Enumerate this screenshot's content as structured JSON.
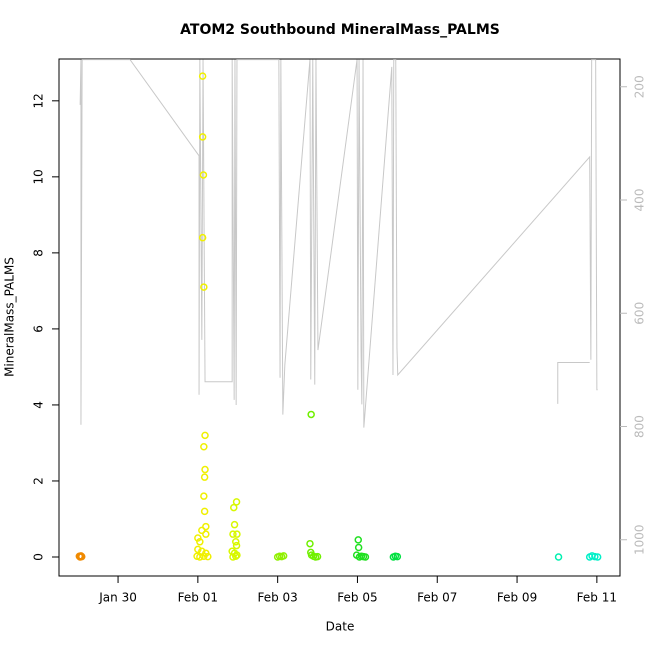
{
  "chart_data": {
    "type": "scatter",
    "title": "ATOM2 Southbound MineralMass_PALMS",
    "x_label": "Date",
    "y_label": "MineralMass_PALMS",
    "xlim": [
      28.52,
      42.58
    ],
    "xticks": [
      {
        "value": 30,
        "label": "Jan 30"
      },
      {
        "value": 32,
        "label": "Feb 01"
      },
      {
        "value": 34,
        "label": "Feb 03"
      },
      {
        "value": 36,
        "label": "Feb 05"
      },
      {
        "value": 38,
        "label": "Feb 07"
      },
      {
        "value": 40,
        "label": "Feb 09"
      },
      {
        "value": 42,
        "label": "Feb 11"
      }
    ],
    "ylim": [
      -0.5,
      13.1
    ],
    "yticks": [
      0,
      2,
      4,
      6,
      8,
      10,
      12
    ],
    "y2lim": [
      1064,
      151
    ],
    "y2ticks": [
      200,
      400,
      600,
      800,
      1000
    ],
    "y2_tick_color": "#bbbbbb",
    "grid": false,
    "series": [
      {
        "type": "line",
        "axis": "y2",
        "color": "#c8c8c8",
        "x": [
          29.05,
          29.07,
          29.07,
          29.1,
          30.3,
          32.03,
          32.03,
          32.05,
          32.1,
          32.13,
          32.18,
          32.86,
          32.86,
          32.91,
          32.93,
          32.96,
          32.98,
          34.03,
          34.06,
          34.08,
          34.13,
          34.18,
          34.81,
          34.83,
          34.88,
          34.93,
          34.96,
          35.01,
          35.99,
          36.01,
          36.04,
          36.09,
          36.11,
          36.14,
          36.16,
          36.86,
          36.89,
          36.91,
          36.96,
          36.99,
          37.01,
          41.82,
          41.85,
          41.87,
          41.97,
          42.0,
          42.02,
          null,
          41.02,
          41.02,
          41.82
        ],
        "values": [
          232,
          152,
          797,
          152,
          152,
          322,
          744,
          152,
          647,
          152,
          721,
          721,
          152,
          753,
          152,
          762,
          152,
          152,
          714,
          152,
          779,
          691,
          152,
          717,
          152,
          726,
          152,
          665,
          152,
          735,
          152,
          665,
          761,
          152,
          802,
          165,
          709,
          152,
          152,
          661,
          709,
          324,
          682,
          152,
          152,
          735,
          735,
          null,
          760,
          687,
          687
        ]
      },
      {
        "type": "scatter",
        "color": "#f08a00",
        "x": [
          29.03,
          29.05,
          29.07,
          29.09
        ],
        "values": [
          0.02,
          0,
          0.03,
          0.01
        ]
      },
      {
        "type": "scatter",
        "color": "#f0f000",
        "x": [
          32.12,
          32.12,
          32.14,
          32.12,
          32.15,
          32.18,
          32.15,
          32.18,
          32.17,
          32.15,
          32.17,
          32.2,
          32.1,
          32.0,
          32.2,
          32.05,
          32.0,
          32.1,
          32.2,
          31.98,
          32.05,
          32.15,
          32.25
        ],
        "values": [
          12.65,
          11.05,
          10.05,
          8.4,
          7.1,
          3.2,
          2.9,
          2.3,
          2.1,
          1.6,
          1.2,
          0.8,
          0.7,
          0.5,
          0.6,
          0.4,
          0.2,
          0.15,
          0.1,
          0.02,
          0,
          0.02,
          0.01
        ]
      },
      {
        "type": "scatter",
        "color": "#d8f800",
        "x": [
          32.97,
          32.9,
          32.92,
          32.88,
          32.98,
          32.95,
          32.97,
          32.86,
          32.92,
          32.98,
          32.88,
          32.95
        ],
        "values": [
          1.45,
          1.3,
          0.85,
          0.6,
          0.6,
          0.4,
          0.3,
          0.15,
          0.1,
          0.05,
          0,
          0.02
        ]
      },
      {
        "type": "scatter",
        "color": "#90f000",
        "x": [
          34.0,
          34.05,
          34.1,
          34.15
        ],
        "values": [
          0,
          0.02,
          0.01,
          0.03
        ]
      },
      {
        "type": "scatter",
        "color": "#70f000",
        "x": [
          34.84,
          34.81,
          34.83,
          34.85,
          34.9,
          34.95,
          35.0
        ],
        "values": [
          3.75,
          0.35,
          0.12,
          0.05,
          0.02,
          0,
          0.01
        ]
      },
      {
        "type": "scatter",
        "color": "#20e020",
        "x": [
          36.02,
          36.03,
          35.98,
          36.05,
          36.1,
          36.15,
          36.2
        ],
        "values": [
          0.45,
          0.25,
          0.05,
          0,
          0.02,
          0.01,
          0
        ]
      },
      {
        "type": "scatter",
        "color": "#00e040",
        "x": [
          36.9,
          36.95,
          37.0
        ],
        "values": [
          0,
          0.02,
          0.01
        ]
      },
      {
        "type": "scatter",
        "color": "#00f0b0",
        "x": [
          41.04
        ],
        "values": [
          0
        ]
      },
      {
        "type": "scatter",
        "color": "#00f0c8",
        "x": [
          41.82,
          41.88,
          41.95,
          42.02
        ],
        "values": [
          0,
          0.03,
          0.01,
          0
        ]
      }
    ]
  }
}
